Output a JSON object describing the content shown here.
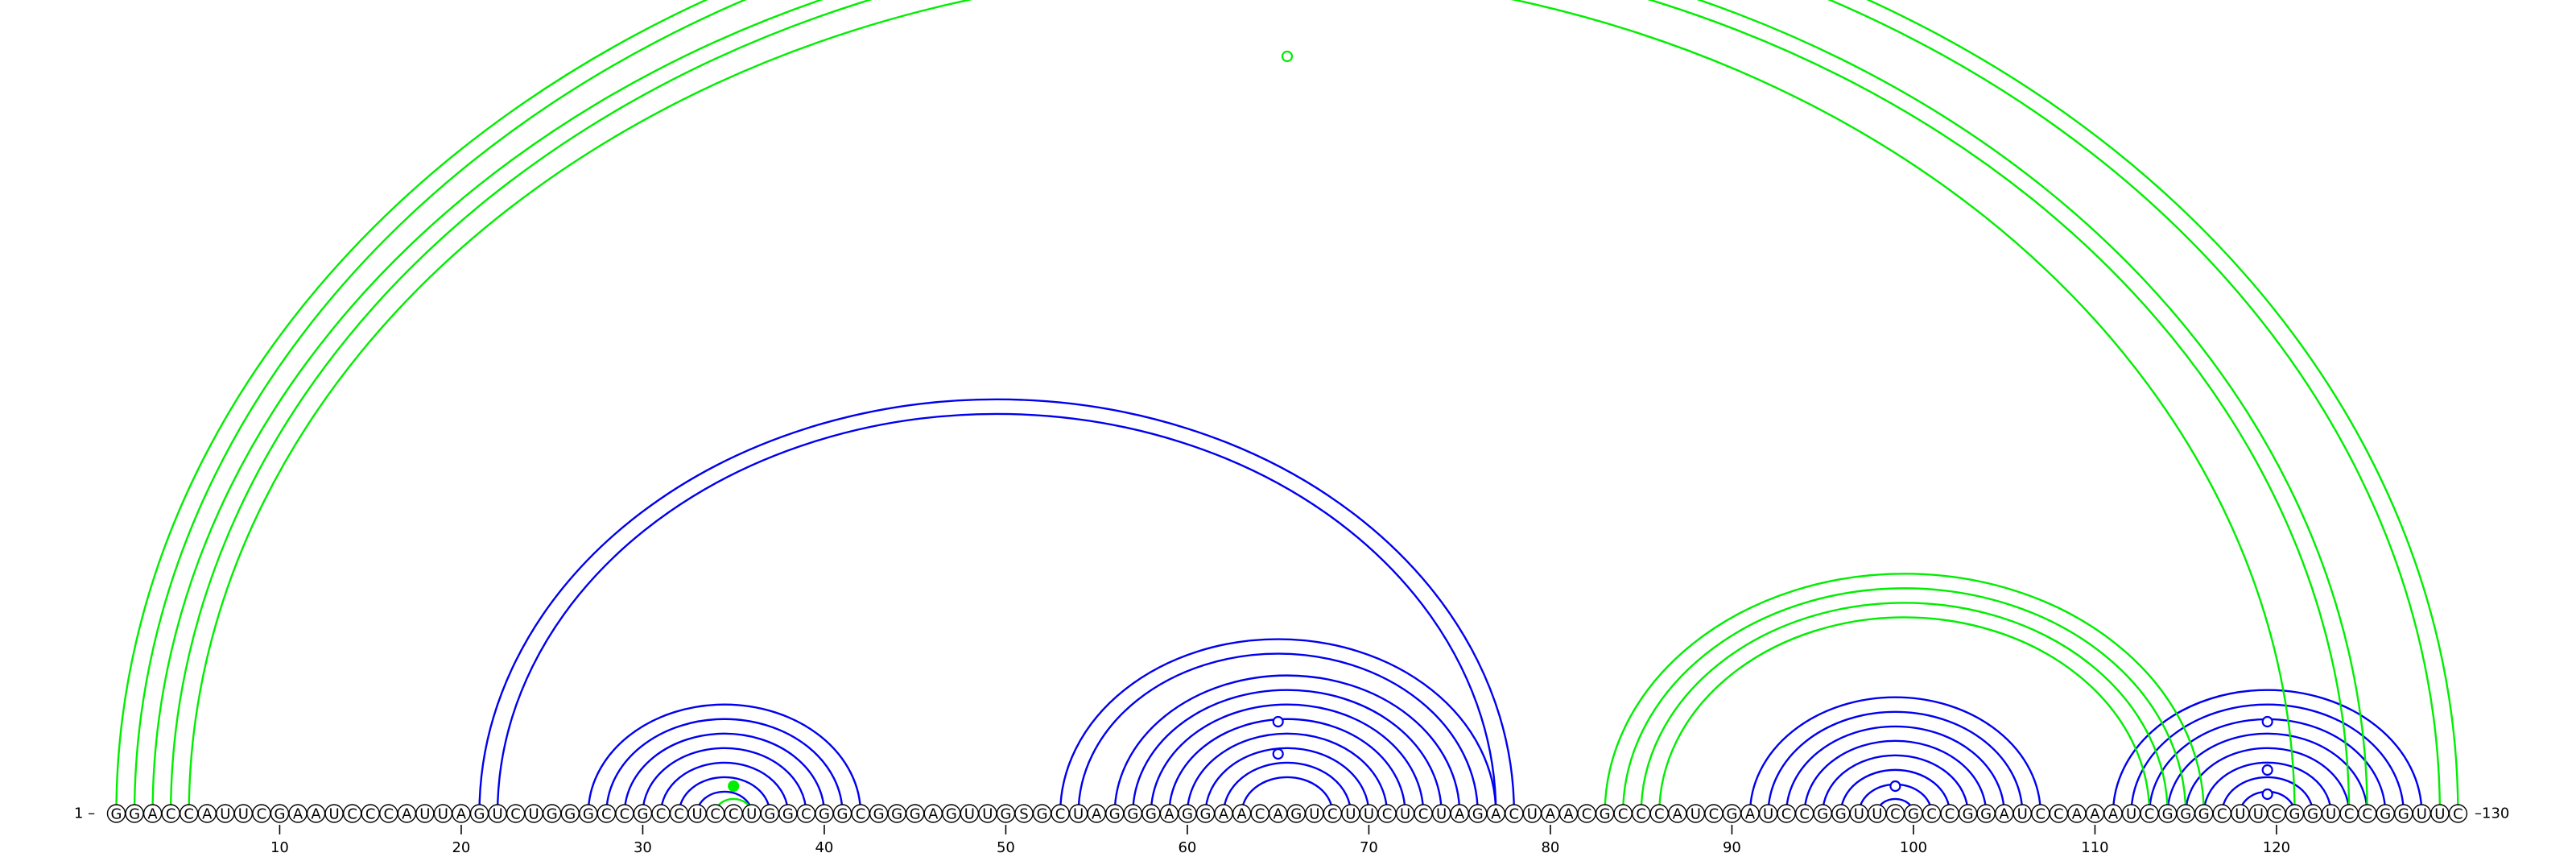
{
  "sequence": "GGACCAUUCGAAUCCCAUUAGUCUGGGCCGCCUCCUGGCGGCGGGAGUUGSGCUAGGGAGGAACAGUCUUCUCUAGACUAACGCCCAUCGAUCCGGUUCGCCGGAUCCAAAUCGGGCUUCGGUCCGGUUC",
  "start_label": "1 –",
  "end_label": "–130",
  "ticks": [
    "10",
    "20",
    "30",
    "40",
    "50",
    "60",
    "70",
    "80",
    "90",
    "100",
    "110",
    "120"
  ],
  "colors": {
    "blue": "#0000ee",
    "green": "#00ee00",
    "nucleotide_outline": "#000000"
  },
  "helices": [
    {
      "color": "blue",
      "pairs": [
        [
          21,
          78
        ],
        [
          22,
          77
        ]
      ]
    },
    {
      "color": "blue",
      "pairs": [
        [
          27,
          42
        ],
        [
          28,
          41
        ],
        [
          29,
          40
        ],
        [
          30,
          39
        ],
        [
          31,
          38
        ],
        [
          32,
          37
        ],
        [
          33,
          36
        ]
      ]
    },
    {
      "color": "green",
      "pairs": [
        [
          34,
          36
        ]
      ]
    },
    {
      "color": "blue",
      "pairs": [
        [
          53,
          77
        ],
        [
          54,
          76
        ],
        [
          56,
          75
        ],
        [
          57,
          74
        ],
        [
          58,
          73
        ],
        [
          59,
          72
        ],
        [
          60,
          71
        ],
        [
          61,
          70
        ],
        [
          62,
          69
        ],
        [
          63,
          68
        ]
      ]
    },
    {
      "color": "blue",
      "pairs": [
        [
          91,
          107
        ],
        [
          92,
          106
        ],
        [
          93,
          105
        ],
        [
          94,
          104
        ],
        [
          95,
          103
        ],
        [
          96,
          102
        ],
        [
          97,
          101
        ],
        [
          98,
          100
        ]
      ]
    },
    {
      "color": "blue",
      "pairs": [
        [
          111,
          128
        ],
        [
          112,
          127
        ],
        [
          113,
          126
        ],
        [
          114,
          125
        ],
        [
          115,
          124
        ],
        [
          116,
          123
        ],
        [
          117,
          122
        ],
        [
          118,
          121
        ]
      ]
    },
    {
      "color": "green",
      "pairs": [
        [
          1,
          130
        ],
        [
          2,
          129
        ],
        [
          3,
          125
        ],
        [
          4,
          124
        ],
        [
          5,
          121
        ]
      ]
    },
    {
      "color": "green",
      "pairs": [
        [
          83,
          116
        ],
        [
          84,
          115
        ],
        [
          85,
          114
        ],
        [
          86,
          113
        ]
      ]
    }
  ],
  "markers": [
    {
      "color": "green",
      "filled": false,
      "pos": 65.5,
      "level": "top"
    },
    {
      "color": "blue",
      "filled": false,
      "pos": 65,
      "level": 10
    },
    {
      "color": "blue",
      "filled": false,
      "pos": 65,
      "level": 6
    },
    {
      "color": "green",
      "filled": true,
      "pos": 35,
      "level": 2
    },
    {
      "color": "blue",
      "filled": false,
      "pos": 99,
      "level": 2
    },
    {
      "color": "blue",
      "filled": false,
      "pos": 119.5,
      "level": 1
    },
    {
      "color": "blue",
      "filled": false,
      "pos": 119.5,
      "level": 4
    },
    {
      "color": "blue",
      "filled": false,
      "pos": 119.5,
      "level": 10
    }
  ]
}
